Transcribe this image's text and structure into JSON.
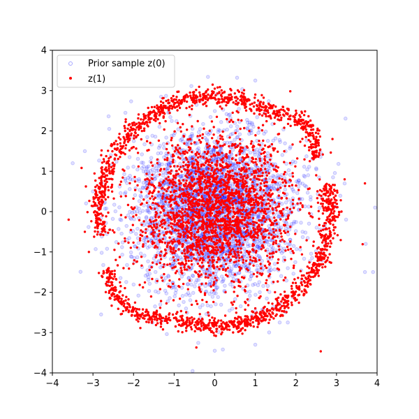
{
  "chart_data": {
    "type": "scatter",
    "title": "",
    "xlabel": "",
    "ylabel": "",
    "xlim": [
      -4,
      4
    ],
    "ylim": [
      -4,
      4
    ],
    "xticks": [
      "−4",
      "−3",
      "−2",
      "−1",
      "0",
      "1",
      "2",
      "3",
      "4"
    ],
    "yticks": [
      "−4",
      "−3",
      "−2",
      "−1",
      "0",
      "1",
      "2",
      "3",
      "4"
    ],
    "grid": false,
    "legend_position": "upper-left",
    "series": [
      {
        "name": "Prior sample z(0)",
        "color": "#0000ff",
        "marker": "circle",
        "alpha": 0.2,
        "filled": false,
        "distribution": {
          "kind": "gaussian",
          "mean": [
            0,
            0
          ],
          "std": [
            1,
            1
          ],
          "count": 3000
        },
        "points": [
          [
            -3.5,
            1.2
          ],
          [
            3.95,
            0.1
          ],
          [
            -2.2,
            2.45
          ],
          [
            -2.6,
            2.05
          ],
          [
            1.0,
            3.25
          ],
          [
            0.55,
            3.32
          ],
          [
            3.72,
            -0.8
          ],
          [
            3.7,
            -1.5
          ],
          [
            3.9,
            -1.5
          ],
          [
            0.0,
            -3.45
          ],
          [
            0.2,
            -3.42
          ],
          [
            1.0,
            -3.3
          ],
          [
            -2.8,
            -2.55
          ],
          [
            -3.2,
            1.5
          ],
          [
            -3.0,
            0.5
          ],
          [
            1.6,
            -2.75
          ],
          [
            1.8,
            -2.75
          ]
        ]
      },
      {
        "name": "z(1)",
        "color": "#ff0000",
        "marker": "circle",
        "alpha": 1.0,
        "filled": true,
        "distribution": {
          "kind": "center-blob-and-ring",
          "center_std": 0.95,
          "center_count": 2400,
          "ring_radius": 2.85,
          "ring_width": 0.11,
          "ring_gaps_deg": [
            [
              192,
              208
            ],
            [
              14,
              28
            ]
          ],
          "ring_count": 1800
        },
        "points": [
          [
            -3.6,
            -0.2
          ],
          [
            -3.2,
            -0.5
          ],
          [
            -3.1,
            -1.0
          ],
          [
            -2.5,
            -1.9
          ],
          [
            -1.5,
            -2.5
          ],
          [
            0.0,
            -2.65
          ],
          [
            1.0,
            -2.4
          ],
          [
            1.7,
            -1.7
          ],
          [
            2.5,
            0.9
          ],
          [
            3.2,
            0.8
          ],
          [
            3.7,
            0.7
          ],
          [
            2.9,
            1.8
          ],
          [
            2.0,
            2.5
          ],
          [
            1.0,
            2.9
          ],
          [
            0.0,
            3.05
          ],
          [
            -1.5,
            2.5
          ],
          [
            -2.0,
            1.6
          ]
        ]
      }
    ]
  }
}
